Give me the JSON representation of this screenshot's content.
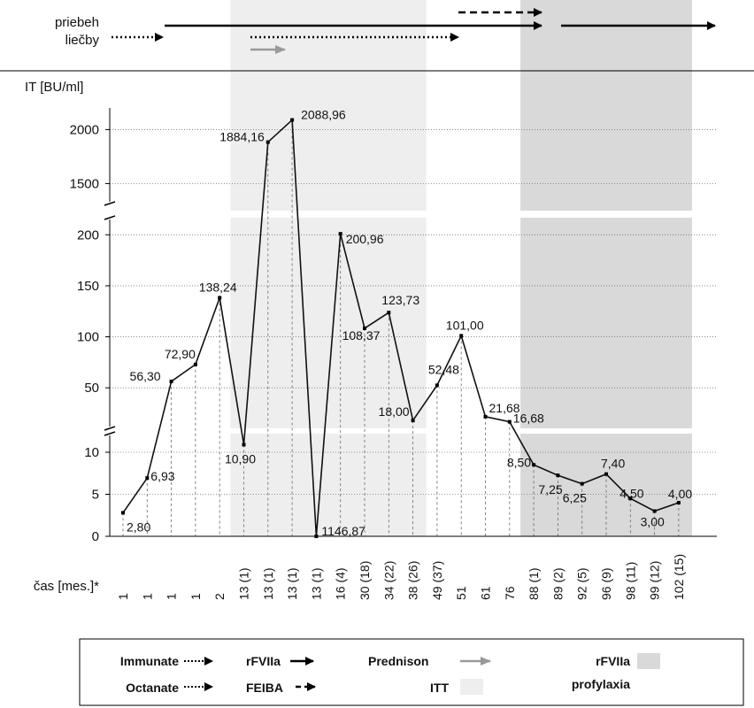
{
  "header": {
    "label_line1": "priebeh",
    "label_line2": "liečby"
  },
  "chart_data": {
    "type": "line",
    "ylabel": "IT [BU/ml]",
    "xlabel": "čas [mes.]*",
    "y_broken_axis": true,
    "y_segments": [
      {
        "range": [
          1250,
          2200
        ],
        "ticks": [
          1500,
          2000
        ]
      },
      {
        "range": [
          12,
          215
        ],
        "ticks": [
          50,
          100,
          150,
          200
        ]
      },
      {
        "range": [
          0,
          12
        ],
        "ticks": [
          0,
          5,
          10
        ]
      }
    ],
    "categories": [
      "1",
      "1",
      "1",
      "1",
      "2",
      "13 (1)",
      "13 (1)",
      "13 (1)",
      "13 (1)",
      "16 (4)",
      "30 (18)",
      "34 (22)",
      "38 (26)",
      "49 (37)",
      "51",
      "61",
      "76",
      "88 (1)",
      "89 (2)",
      "92 (5)",
      "96 (9)",
      "98 (11)",
      "99 (12)",
      "102 (15)"
    ],
    "series": [
      {
        "values": [
          2.8,
          6.93,
          56.3,
          72.9,
          138.24,
          10.9,
          1884.16,
          2088.96,
          1146.87,
          200.96,
          108.37,
          123.73,
          18.0,
          52.48,
          101.0,
          21.68,
          16.68,
          8.5,
          7.25,
          6.25,
          7.4,
          4.5,
          3.0,
          4.0
        ]
      }
    ],
    "data_labels": [
      "2,80",
      "6,93",
      "56,30",
      "72,90",
      "138,24",
      "10,90",
      "1884,16",
      "2088,96",
      "1146,87",
      "200,96",
      "108,37",
      "123,73",
      "18,00",
      "52,48",
      "101,00",
      "21,68",
      "16,68",
      "8,50",
      "7,25",
      "6,25",
      "7,40",
      "4,50",
      "3,00",
      "4,00"
    ],
    "shaded_regions": [
      {
        "name": "ITT",
        "from_index": 5,
        "to_index": 12,
        "color": "#eeeeee"
      },
      {
        "name": "rFVIIa profylaxia",
        "from_index": 17,
        "to_index": 23,
        "color": "#d9d9d9"
      }
    ],
    "grid": true
  },
  "legend": {
    "immunate": "Immunate",
    "octanate": "Octanate",
    "rfviia": "rFVIIa",
    "feiba": "FEIBA",
    "prednison": "Prednison",
    "itt": "ITT",
    "prof_line1": "rFVIIa",
    "prof_line2": "profylaxia"
  },
  "colors": {
    "itt": "#eeeeee",
    "profylaxia": "#d9d9d9",
    "prednison": "#999999",
    "line": "#111111"
  }
}
